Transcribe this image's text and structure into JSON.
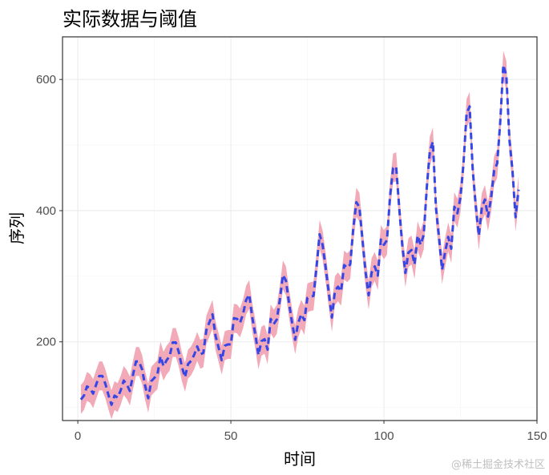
{
  "chart_data": {
    "type": "line",
    "title": "实际数据与阈值",
    "xlabel": "时间",
    "ylabel": "序列",
    "xlim": [
      -5,
      150
    ],
    "ylim": [
      80,
      665
    ],
    "xticks": [
      0,
      50,
      100,
      150
    ],
    "yticks": [
      200,
      400,
      600
    ],
    "grid": true,
    "colors": {
      "band": "#f2a9b8",
      "line": "#3447e6"
    },
    "x": [
      1,
      2,
      3,
      4,
      5,
      6,
      7,
      8,
      9,
      10,
      11,
      12,
      13,
      14,
      15,
      16,
      17,
      18,
      19,
      20,
      21,
      22,
      23,
      24,
      25,
      26,
      27,
      28,
      29,
      30,
      31,
      32,
      33,
      34,
      35,
      36,
      37,
      38,
      39,
      40,
      41,
      42,
      43,
      44,
      45,
      46,
      47,
      48,
      49,
      50,
      51,
      52,
      53,
      54,
      55,
      56,
      57,
      58,
      59,
      60,
      61,
      62,
      63,
      64,
      65,
      66,
      67,
      68,
      69,
      70,
      71,
      72,
      73,
      74,
      75,
      76,
      77,
      78,
      79,
      80,
      81,
      82,
      83,
      84,
      85,
      86,
      87,
      88,
      89,
      90,
      91,
      92,
      93,
      94,
      95,
      96,
      97,
      98,
      99,
      100,
      101,
      102,
      103,
      104,
      105,
      106,
      107,
      108,
      109,
      110,
      111,
      112,
      113,
      114,
      115,
      116,
      117,
      118,
      119,
      120,
      121,
      122,
      123,
      124,
      125,
      126,
      127,
      128,
      129,
      130,
      131,
      132,
      133,
      134,
      135,
      136,
      137,
      138,
      139,
      140,
      141,
      142,
      143,
      144
    ],
    "series": [
      {
        "values": [
          112,
          118,
          132,
          129,
          121,
          135,
          148,
          148,
          136,
          119,
          104,
          118,
          115,
          126,
          141,
          135,
          125,
          149,
          170,
          170,
          158,
          133,
          114,
          140,
          145,
          150,
          178,
          163,
          172,
          178,
          199,
          199,
          184,
          162,
          146,
          166,
          171,
          180,
          193,
          181,
          183,
          218,
          230,
          242,
          209,
          191,
          172,
          194,
          196,
          196,
          236,
          235,
          229,
          243,
          264,
          272,
          237,
          211,
          180,
          201,
          204,
          188,
          235,
          227,
          234,
          264,
          302,
          293,
          259,
          229,
          203,
          229,
          242,
          233,
          267,
          269,
          270,
          315,
          364,
          347,
          312,
          274,
          237,
          278,
          284,
          277,
          317,
          313,
          318,
          374,
          413,
          405,
          355,
          306,
          271,
          306,
          315,
          301,
          356,
          348,
          355,
          422,
          465,
          467,
          404,
          347,
          305,
          336,
          340,
          318,
          362,
          348,
          363,
          435,
          491,
          505,
          404,
          359,
          310,
          337,
          360,
          342,
          406,
          396,
          420,
          472,
          548,
          559,
          463,
          407,
          362,
          405,
          417,
          391,
          419,
          461,
          472,
          535,
          622,
          606,
          508,
          461,
          390,
          432
        ]
      }
    ],
    "band": {
      "upper_offset": 22,
      "lower_offset": 22
    }
  },
  "watermark": "@稀土掘金技术社区"
}
